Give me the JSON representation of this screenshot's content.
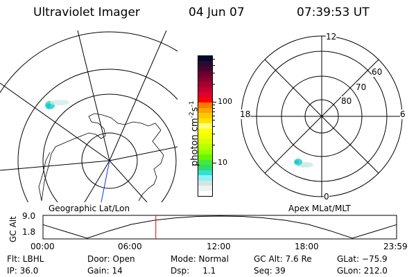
{
  "header": {
    "instrument": "Ultraviolet Imager",
    "date": "04 Jun 07",
    "time": "07:39:53 UT"
  },
  "geographic_panel": {
    "label": "Geographic Lat/Lon"
  },
  "magnetic_panel": {
    "label": "Apex MLat/MLT",
    "mlt_labels": {
      "top": "12",
      "left": "18",
      "right": "6",
      "bottom": "0"
    },
    "mlat_labels": [
      "80",
      "70",
      "60"
    ]
  },
  "colorbar": {
    "label_main": "photon cm",
    "label_exp1": "-2",
    "label_mid": "s",
    "label_exp2": "-1",
    "ticks": [
      "100",
      "10"
    ],
    "colors": [
      "#000830",
      "#2a0a30",
      "#4a0030",
      "#6a0030",
      "#880030",
      "#a40030",
      "#c40030",
      "#e00030",
      "#ff0000",
      "#ff7a00",
      "#ffa400",
      "#ffc800",
      "#ffe400",
      "#ffff80",
      "#ffff00",
      "#eeff00",
      "#d6ff00",
      "#baff00",
      "#96ff00",
      "#66f800",
      "#44e840",
      "#30dc68",
      "#30e0d8",
      "#90f0f4",
      "#d4e4e4",
      "#ebf4ee",
      "#ffffff"
    ]
  },
  "altitude_plot": {
    "ylabel": "GC Alt",
    "yticks": [
      "9.0",
      "1.8"
    ],
    "xticks": [
      "00:00",
      "06:00",
      "12:00",
      "18:00",
      "23:59"
    ],
    "current_time_hours": 7.66,
    "hours": [
      0,
      1.5,
      3,
      4.5,
      6,
      7.5,
      9,
      10.5,
      12,
      13.5,
      15,
      16.5,
      18,
      19.5,
      21,
      22.5,
      24
    ],
    "altitude_re": [
      6.2,
      4.0,
      1.8,
      4.2,
      6.3,
      7.6,
      8.4,
      8.9,
      9.0,
      8.9,
      8.4,
      7.6,
      6.3,
      4.2,
      1.8,
      4.0,
      6.2
    ],
    "ylim": [
      1.8,
      9.0
    ]
  },
  "status": {
    "row1": [
      "Flt: LBHL",
      "Door: Open",
      "Mode: Normal",
      "GC Alt: 7.6 Re",
      "GLat: −75.9"
    ],
    "row2": [
      "IP: 36.0",
      "Gain: 14",
      "Dsp:     1.1",
      "Seq: 39",
      "GLon: 212.0"
    ]
  }
}
